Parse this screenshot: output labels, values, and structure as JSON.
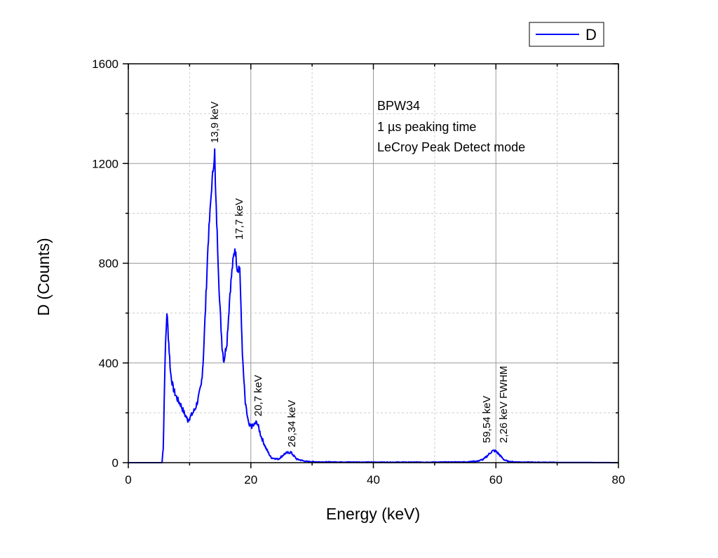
{
  "chart_data": {
    "type": "line",
    "title": "",
    "xlabel": "Energy (keV)",
    "ylabel": "D (Counts)",
    "xlim": [
      0,
      80
    ],
    "ylim": [
      0,
      1600
    ],
    "xticks": [
      "0",
      "20",
      "40",
      "60",
      "80"
    ],
    "yticks": [
      "0",
      "400",
      "800",
      "1200",
      "1600"
    ],
    "grid": true,
    "legend": {
      "placement": "top-right",
      "entries": [
        "D"
      ]
    },
    "series": [
      {
        "name": "D",
        "color": "#0000ff",
        "x": [
          0,
          5.5,
          5.7,
          6.0,
          6.3,
          6.6,
          6.9,
          7.3,
          7.7,
          8.1,
          8.5,
          9.1,
          9.7,
          10.3,
          10.9,
          11.4,
          11.9,
          12.2,
          12.6,
          13.0,
          13.6,
          14.1,
          14.2,
          14.5,
          14.9,
          15.3,
          15.6,
          16.1,
          16.6,
          17.0,
          17.4,
          17.8,
          18.2,
          18.4,
          18.7,
          19.1,
          19.7,
          20.3,
          21.0,
          21.7,
          22.5,
          23.3,
          24.5,
          25.6,
          26.5,
          27.5,
          29.0,
          31,
          40,
          50,
          55,
          57,
          58,
          58.7,
          59.3,
          59.7,
          60.1,
          60.7,
          61.3,
          62,
          63,
          65,
          70,
          80
        ],
        "y": [
          0,
          0,
          60,
          420,
          605,
          480,
          360,
          300,
          272,
          250,
          235,
          200,
          170,
          190,
          215,
          255,
          310,
          400,
          620,
          870,
          1105,
          1250,
          1115,
          920,
          647,
          470,
          408,
          487,
          683,
          787,
          863,
          779,
          787,
          600,
          394,
          235,
          146,
          146,
          163,
          104,
          56,
          20,
          14,
          37,
          42,
          14,
          5,
          3,
          2,
          2,
          3,
          6,
          14,
          30,
          45,
          48,
          44,
          28,
          12,
          5,
          3,
          2,
          1,
          0
        ]
      }
    ],
    "annotations": {
      "info_lines": [
        "BPW34",
        "1 µs peaking time",
        "LeCroy Peak Detect mode"
      ],
      "peak_labels": [
        "13,9 keV",
        "17,7 keV",
        "20,7 keV",
        "26,34 keV",
        "59,54 keV",
        "2,26 keV FWHM"
      ]
    }
  }
}
